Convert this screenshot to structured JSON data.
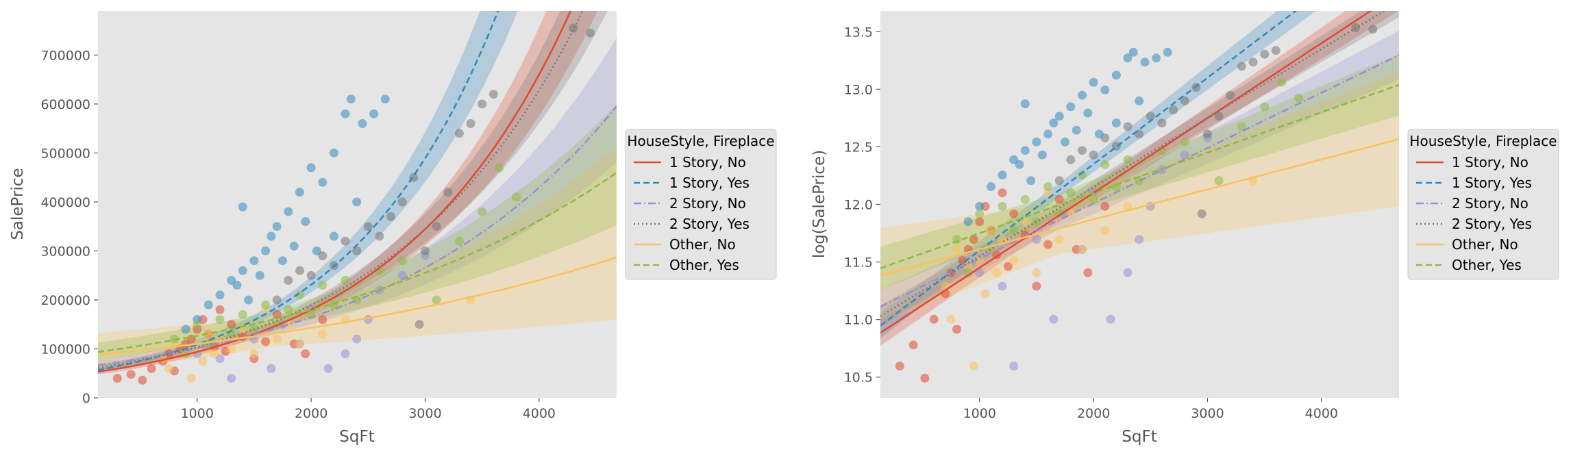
{
  "colors": {
    "1 Story, No": "#E24A33",
    "1 Story, Yes": "#348ABD",
    "2 Story, No": "#988ED5",
    "2 Story, Yes": "#777777",
    "Other, No": "#FBC15E",
    "Other, Yes": "#8EBA42",
    "panel_bg": "#E5E5E5"
  },
  "chart_data": [
    {
      "type": "scatter",
      "xlabel": "SqFt",
      "ylabel": "SalePrice",
      "xlim": [
        130,
        4680
      ],
      "ylim": [
        0,
        790000
      ],
      "x_ticks": [
        1000,
        2000,
        3000,
        4000
      ],
      "x_tick_labels": [
        "1000",
        "2000",
        "3000",
        "4000"
      ],
      "y_ticks": [
        0,
        100000,
        200000,
        300000,
        400000,
        500000,
        600000,
        700000
      ],
      "y_tick_labels": [
        "0",
        "100000",
        "200000",
        "300000",
        "400000",
        "500000",
        "600000",
        "700000"
      ],
      "grid": false,
      "legend_title": "HouseStyle, Fireplace",
      "legend_position": "right-outside",
      "series": [
        {
          "name": "1 Story, No",
          "fit_line": "solid",
          "fit_log_intercept": 10.8,
          "fit_log_slope": 0.00065,
          "band": 0.06,
          "points": [
            [
              300,
              40000
            ],
            [
              420,
              48000
            ],
            [
              520,
              36000
            ],
            [
              600,
              60000
            ],
            [
              700,
              75000
            ],
            [
              750,
              90000
            ],
            [
              800,
              55000
            ],
            [
              850,
              100000
            ],
            [
              900,
              110000
            ],
            [
              950,
              120000
            ],
            [
              1000,
              140000
            ],
            [
              1050,
              160000
            ],
            [
              1100,
              130000
            ],
            [
              1150,
              105000
            ],
            [
              1200,
              180000
            ],
            [
              1250,
              95000
            ],
            [
              1300,
              150000
            ],
            [
              1400,
              125000
            ],
            [
              1500,
              80000
            ],
            [
              1600,
              115000
            ],
            [
              1700,
              170000
            ],
            [
              1850,
              110000
            ],
            [
              1950,
              90000
            ],
            [
              2100,
              160000
            ]
          ]
        },
        {
          "name": "1 Story, Yes",
          "fit_line": "dashed",
          "fit_log_intercept": 10.85,
          "fit_log_slope": 0.00075,
          "band": 0.06,
          "points": [
            [
              900,
              140000
            ],
            [
              1000,
              160000
            ],
            [
              1100,
              190000
            ],
            [
              1200,
              210000
            ],
            [
              1300,
              240000
            ],
            [
              1350,
              230000
            ],
            [
              1400,
              390000
            ],
            [
              1400,
              260000
            ],
            [
              1450,
              200000
            ],
            [
              1500,
              280000
            ],
            [
              1550,
              250000
            ],
            [
              1600,
              300000
            ],
            [
              1650,
              330000
            ],
            [
              1700,
              350000
            ],
            [
              1750,
              280000
            ],
            [
              1800,
              380000
            ],
            [
              1850,
              310000
            ],
            [
              1900,
              420000
            ],
            [
              1950,
              360000
            ],
            [
              2000,
              470000
            ],
            [
              2050,
              300000
            ],
            [
              2100,
              440000
            ],
            [
              2200,
              500000
            ],
            [
              2300,
              580000
            ],
            [
              2350,
              610000
            ],
            [
              2450,
              560000
            ],
            [
              2550,
              580000
            ],
            [
              2650,
              610000
            ],
            [
              2200,
              330000
            ],
            [
              2400,
              400000
            ]
          ]
        },
        {
          "name": "2 Story, No",
          "fit_line": "dashdot",
          "fit_log_intercept": 11.05,
          "fit_log_slope": 0.00048,
          "band": 0.08,
          "points": [
            [
              1000,
              90000
            ],
            [
              1200,
              80000
            ],
            [
              1300,
              40000
            ],
            [
              1500,
              120000
            ],
            [
              1650,
              60000
            ],
            [
              1750,
              150000
            ],
            [
              1900,
              110000
            ],
            [
              2000,
              180000
            ],
            [
              2150,
              60000
            ],
            [
              2300,
              90000
            ],
            [
              2400,
              120000
            ],
            [
              2500,
              160000
            ],
            [
              2600,
              220000
            ],
            [
              2800,
              250000
            ],
            [
              3000,
              290000
            ]
          ]
        },
        {
          "name": "2 Story, Yes",
          "fit_line": "dotted",
          "fit_log_intercept": 10.95,
          "fit_log_slope": 0.0006,
          "band": 0.05,
          "points": [
            [
              1700,
              200000
            ],
            [
              1800,
              240000
            ],
            [
              1900,
              260000
            ],
            [
              2000,
              250000
            ],
            [
              2100,
              290000
            ],
            [
              2200,
              270000
            ],
            [
              2300,
              320000
            ],
            [
              2400,
              300000
            ],
            [
              2500,
              350000
            ],
            [
              2600,
              330000
            ],
            [
              2700,
              370000
            ],
            [
              2800,
              400000
            ],
            [
              2900,
              450000
            ],
            [
              3000,
              300000
            ],
            [
              3100,
              350000
            ],
            [
              3200,
              420000
            ],
            [
              3300,
              540000
            ],
            [
              3400,
              560000
            ],
            [
              3500,
              600000
            ],
            [
              3600,
              620000
            ],
            [
              4300,
              755000
            ],
            [
              4450,
              745000
            ],
            [
              2950,
              150000
            ]
          ]
        },
        {
          "name": "Other, No",
          "fit_line": "solid",
          "fit_log_intercept": 11.35,
          "fit_log_slope": 0.00026,
          "band": 0.22,
          "points": [
            [
              700,
              80000
            ],
            [
              750,
              60000
            ],
            [
              800,
              110000
            ],
            [
              900,
              95000
            ],
            [
              950,
              40000
            ],
            [
              1000,
              100000
            ],
            [
              1050,
              75000
            ],
            [
              1100,
              130000
            ],
            [
              1150,
              90000
            ],
            [
              1200,
              120000
            ],
            [
              1300,
              100000
            ],
            [
              1400,
              140000
            ],
            [
              1500,
              90000
            ],
            [
              1600,
              180000
            ],
            [
              1700,
              120000
            ],
            [
              1800,
              150000
            ],
            [
              1900,
              110000
            ],
            [
              2000,
              170000
            ],
            [
              2100,
              130000
            ],
            [
              2300,
              160000
            ],
            [
              3400,
              200000
            ]
          ]
        },
        {
          "name": "Other, Yes",
          "fit_line": "dashed",
          "fit_log_intercept": 11.4,
          "fit_log_slope": 0.00035,
          "band": 0.1,
          "points": [
            [
              800,
              120000
            ],
            [
              900,
              90000
            ],
            [
              1000,
              150000
            ],
            [
              1100,
              110000
            ],
            [
              1200,
              160000
            ],
            [
              1300,
              130000
            ],
            [
              1400,
              170000
            ],
            [
              1500,
              140000
            ],
            [
              1600,
              190000
            ],
            [
              1700,
              150000
            ],
            [
              1800,
              180000
            ],
            [
              1900,
              210000
            ],
            [
              2000,
              170000
            ],
            [
              2100,
              230000
            ],
            [
              2200,
              190000
            ],
            [
              2300,
              240000
            ],
            [
              2400,
              200000
            ],
            [
              2600,
              260000
            ],
            [
              2800,
              280000
            ],
            [
              3100,
              200000
            ],
            [
              3300,
              320000
            ],
            [
              3500,
              380000
            ],
            [
              3650,
              470000
            ],
            [
              3800,
              410000
            ]
          ]
        }
      ]
    },
    {
      "type": "scatter",
      "xlabel": "SqFt",
      "ylabel": "log(SalePrice)",
      "xlim": [
        130,
        4680
      ],
      "ylim": [
        10.32,
        13.68
      ],
      "x_ticks": [
        1000,
        2000,
        3000,
        4000
      ],
      "x_tick_labels": [
        "1000",
        "2000",
        "3000",
        "4000"
      ],
      "y_ticks": [
        10.5,
        11.0,
        11.5,
        12.0,
        12.5,
        13.0,
        13.5
      ],
      "y_tick_labels": [
        "10.5",
        "11.0",
        "11.5",
        "12.0",
        "12.5",
        "13.0",
        "13.5"
      ],
      "grid": false,
      "legend_title": "HouseStyle, Fireplace",
      "legend_position": "right-outside",
      "same_series_as_left_panel_on_log_scale": true
    }
  ]
}
